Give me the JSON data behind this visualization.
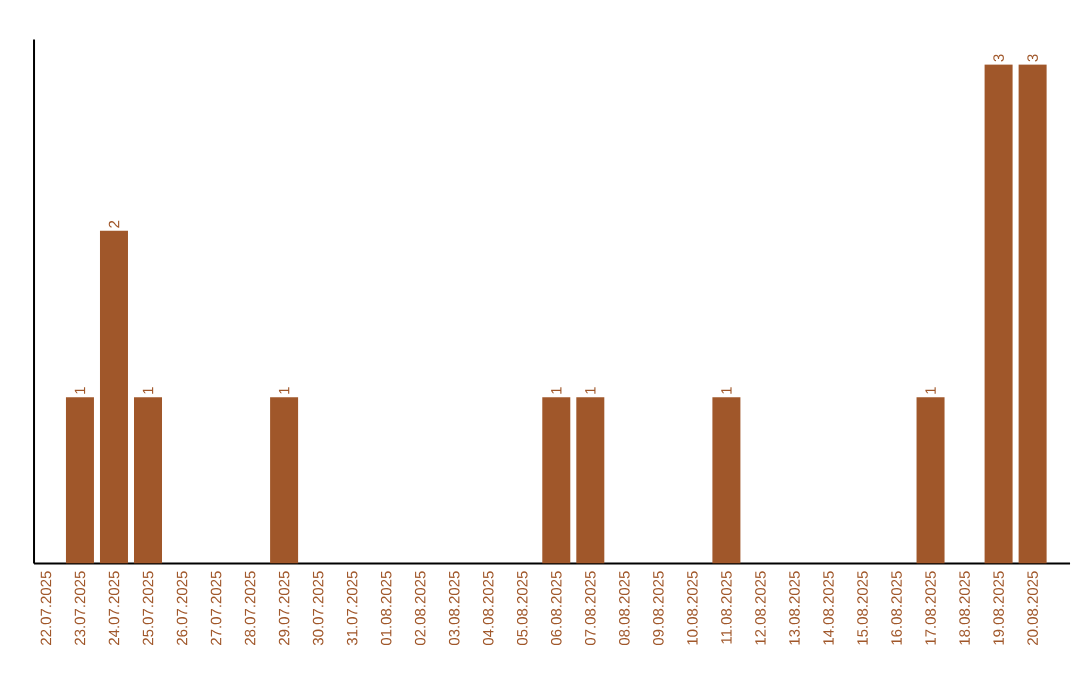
{
  "chart_data": {
    "type": "bar",
    "categories": [
      "22.07.2025",
      "23.07.2025",
      "24.07.2025",
      "25.07.2025",
      "26.07.2025",
      "27.07.2025",
      "28.07.2025",
      "29.07.2025",
      "30.07.2025",
      "31.07.2025",
      "01.08.2025",
      "02.08.2025",
      "03.08.2025",
      "04.08.2025",
      "05.08.2025",
      "06.08.2025",
      "07.08.2025",
      "08.08.2025",
      "09.08.2025",
      "10.08.2025",
      "11.08.2025",
      "12.08.2025",
      "13.08.2025",
      "14.08.2025",
      "15.08.2025",
      "16.08.2025",
      "17.08.2025",
      "18.08.2025",
      "19.08.2025",
      "20.08.2025"
    ],
    "values": [
      0,
      1,
      2,
      1,
      0,
      0,
      0,
      1,
      0,
      0,
      0,
      0,
      0,
      0,
      0,
      1,
      1,
      0,
      0,
      0,
      1,
      0,
      0,
      0,
      0,
      0,
      1,
      0,
      3,
      3
    ],
    "value_labels": [
      null,
      "1",
      "2",
      "1",
      null,
      null,
      null,
      "1",
      null,
      null,
      null,
      null,
      null,
      null,
      null,
      "1",
      "1",
      null,
      null,
      null,
      "1",
      null,
      null,
      null,
      null,
      null,
      "1",
      null,
      "3",
      "3"
    ],
    "color": "#a0572a"
  }
}
